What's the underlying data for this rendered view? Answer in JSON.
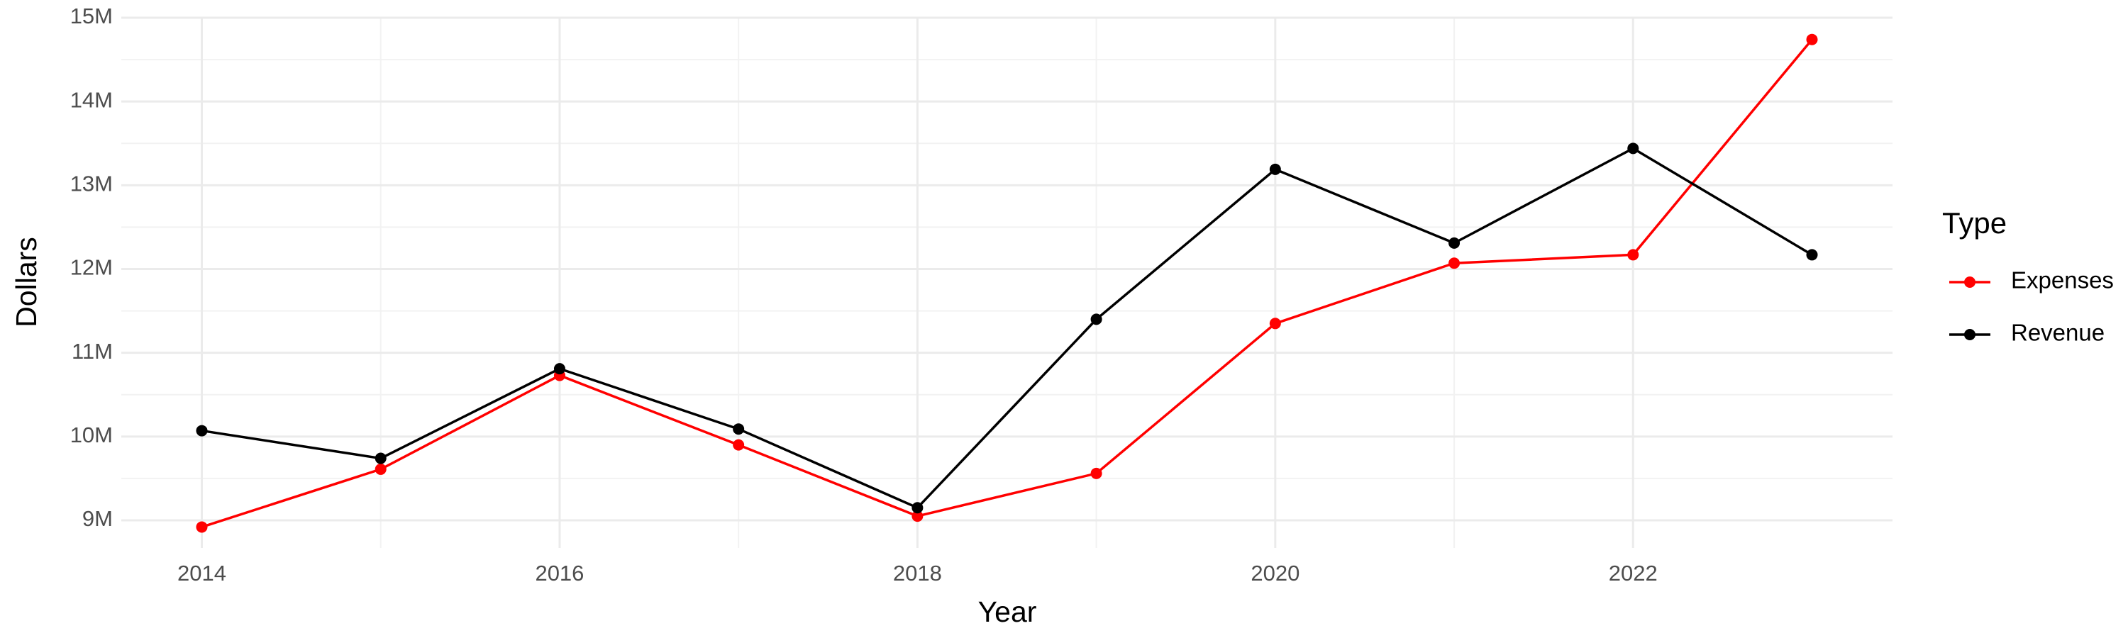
{
  "chart_data": {
    "type": "line",
    "x_label": "Year",
    "y_label": "Dollars",
    "legend_title": "Type",
    "x": [
      2014,
      2015,
      2016,
      2017,
      2018,
      2019,
      2020,
      2021,
      2022,
      2023
    ],
    "series": [
      {
        "name": "Expenses",
        "color": "#ff0000",
        "values": [
          8920000,
          9610000,
          10730000,
          9900000,
          9050000,
          9560000,
          11350000,
          12070000,
          12170000,
          14740000
        ]
      },
      {
        "name": "Revenue",
        "color": "#000000",
        "values": [
          10070000,
          9740000,
          10810000,
          10090000,
          9150000,
          11400000,
          13190000,
          12310000,
          13440000,
          12170000
        ]
      }
    ],
    "xlim": [
      2013.55,
      2023.45
    ],
    "xticks": [
      2014,
      2016,
      2018,
      2020,
      2022
    ],
    "ylim": [
      8670000,
      15000000
    ],
    "yticks": [
      {
        "value": 9000000,
        "label": "9M"
      },
      {
        "value": 10000000,
        "label": "10M"
      },
      {
        "value": 11000000,
        "label": "11M"
      },
      {
        "value": 12000000,
        "label": "12M"
      },
      {
        "value": 13000000,
        "label": "13M"
      },
      {
        "value": 14000000,
        "label": "14M"
      },
      {
        "value": 15000000,
        "label": "15M"
      }
    ],
    "grid": true,
    "legend": "right"
  }
}
